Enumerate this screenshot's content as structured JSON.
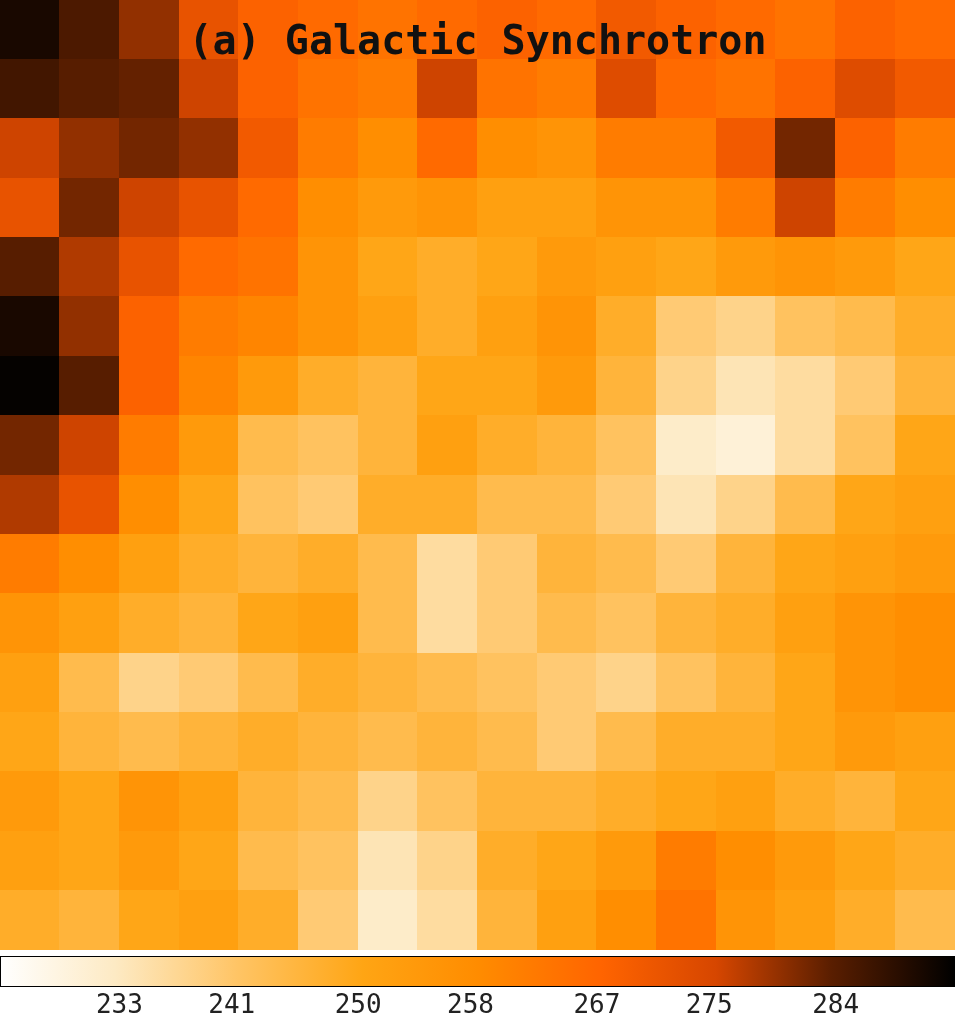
{
  "chart_data": {
    "type": "heatmap",
    "title": "(a) Galactic Synchrotron",
    "cells": [
      [
        290,
        285,
        280,
        272,
        268,
        266,
        264,
        266,
        268,
        266,
        270,
        268,
        266,
        264,
        268,
        266
      ],
      [
        286,
        284,
        283,
        276,
        268,
        264,
        262,
        276,
        264,
        262,
        274,
        266,
        264,
        268,
        274,
        270
      ],
      [
        276,
        280,
        282,
        280,
        270,
        262,
        258,
        266,
        258,
        256,
        262,
        262,
        270,
        282,
        268,
        262
      ],
      [
        272,
        282,
        276,
        272,
        266,
        258,
        254,
        256,
        252,
        252,
        256,
        256,
        262,
        276,
        262,
        258
      ],
      [
        284,
        278,
        272,
        266,
        264,
        256,
        250,
        248,
        250,
        254,
        252,
        250,
        254,
        256,
        254,
        250
      ],
      [
        290,
        280,
        268,
        262,
        260,
        256,
        252,
        248,
        252,
        256,
        248,
        240,
        238,
        242,
        244,
        248
      ],
      [
        292,
        284,
        268,
        260,
        254,
        248,
        246,
        250,
        250,
        254,
        246,
        238,
        234,
        236,
        240,
        246
      ],
      [
        282,
        276,
        262,
        254,
        244,
        242,
        246,
        252,
        248,
        246,
        242,
        232,
        230,
        236,
        242,
        250
      ],
      [
        278,
        272,
        258,
        250,
        242,
        240,
        248,
        248,
        244,
        244,
        240,
        234,
        238,
        244,
        250,
        252
      ],
      [
        262,
        258,
        252,
        248,
        246,
        248,
        244,
        236,
        240,
        246,
        244,
        240,
        246,
        250,
        252,
        254
      ],
      [
        256,
        252,
        248,
        246,
        250,
        252,
        244,
        236,
        240,
        244,
        242,
        246,
        248,
        252,
        256,
        258
      ],
      [
        252,
        244,
        238,
        240,
        244,
        248,
        246,
        244,
        242,
        240,
        238,
        242,
        246,
        250,
        256,
        258
      ],
      [
        250,
        246,
        244,
        246,
        248,
        246,
        244,
        246,
        244,
        240,
        244,
        248,
        248,
        250,
        254,
        252
      ],
      [
        254,
        250,
        256,
        252,
        246,
        244,
        238,
        242,
        246,
        246,
        248,
        250,
        252,
        248,
        246,
        250
      ],
      [
        252,
        250,
        254,
        250,
        244,
        242,
        234,
        238,
        248,
        250,
        254,
        262,
        258,
        254,
        250,
        248
      ],
      [
        248,
        246,
        250,
        252,
        248,
        240,
        232,
        236,
        246,
        252,
        258,
        264,
        256,
        252,
        248,
        244
      ]
    ],
    "colorbar_lim": [
      224.5,
      292.5
    ],
    "colorbar_ticks": [
      233,
      241,
      250,
      258,
      267,
      275,
      284
    ]
  }
}
